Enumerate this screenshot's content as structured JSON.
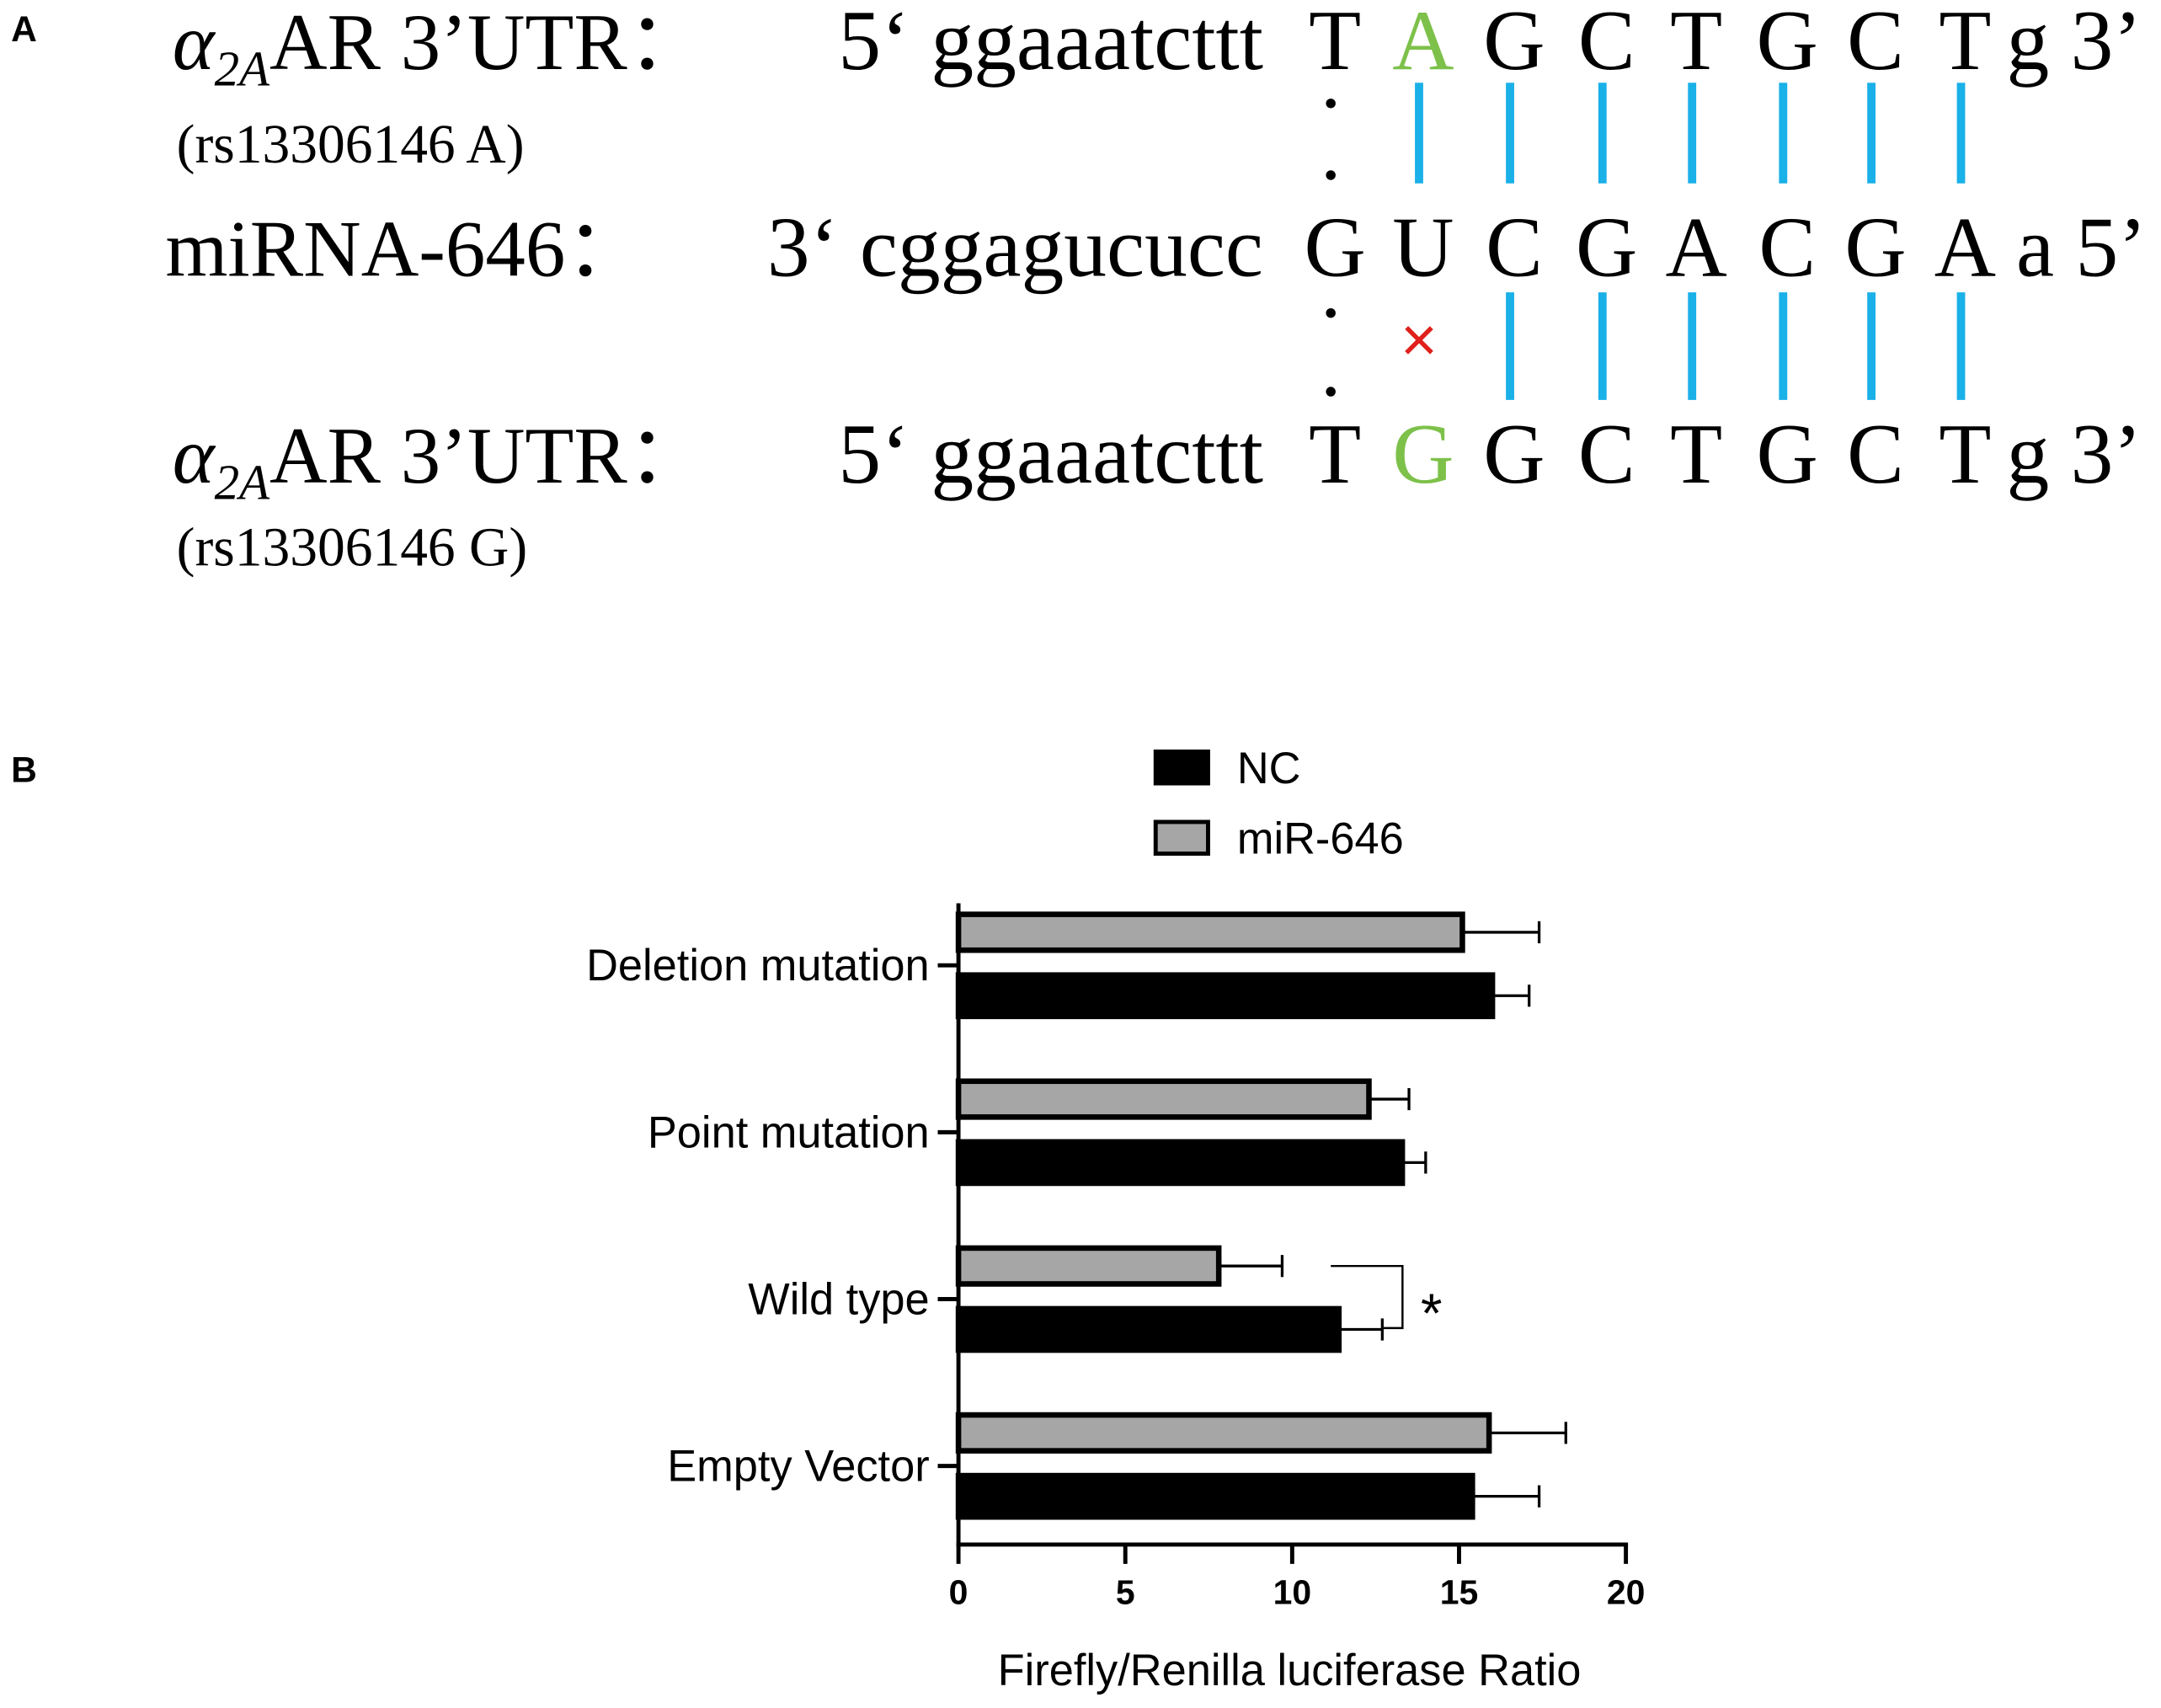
{
  "panel_a": {
    "label": "A",
    "rows": [
      {
        "name": {
          "symbol": "α",
          "subscript": "2A",
          "text": "AR 3’UTR："
        },
        "note": "(rs13306146 A)",
        "prefix": "5‘ ggaaatcttt",
        "bases": [
          "T",
          "A",
          "G",
          "C",
          "T",
          "G",
          "C",
          "T"
        ],
        "suffix": "g 3’"
      },
      {
        "name": {
          "text": "miRNA-646："
        },
        "prefix": "3‘ cggagucucc",
        "bases": [
          "G",
          "U",
          "C",
          "G",
          "A",
          "C",
          "G",
          "A"
        ],
        "suffix": "a 5’"
      },
      {
        "name": {
          "symbol": "α",
          "subscript": "2A",
          "text": "AR 3’UTR："
        },
        "note": "(rs13306146 G)",
        "prefix": "5‘ ggaaatcttt",
        "bases": [
          "T",
          "G",
          "G",
          "C",
          "T",
          "G",
          "C",
          "T"
        ],
        "suffix": "g 3’"
      }
    ],
    "mismatch": "×"
  },
  "panel_b": {
    "label": "B"
  },
  "chart_data": {
    "type": "hbar",
    "categories": [
      "Deletion mutation",
      "Point mutation",
      "Wild type",
      "Empty Vector"
    ],
    "series": [
      {
        "name": "NC",
        "color": "#000000",
        "values": [
          16.0,
          13.3,
          11.4,
          15.4
        ],
        "errors": [
          1.1,
          0.7,
          1.3,
          2.0
        ]
      },
      {
        "name": "miR-646",
        "color": "#a6a6a6",
        "values": [
          15.1,
          12.3,
          7.8,
          15.9
        ],
        "errors": [
          2.3,
          1.2,
          1.9,
          2.3
        ]
      }
    ],
    "xlabel": "Firefly/Renilla luciferase Ratio",
    "xlim": [
      0,
      20
    ],
    "xticks": [
      0,
      5,
      10,
      15,
      20
    ],
    "annotation": "*"
  }
}
